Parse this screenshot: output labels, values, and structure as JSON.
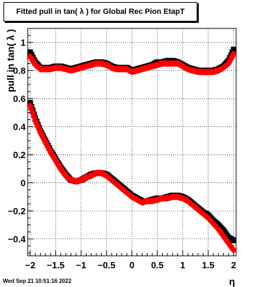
{
  "chart_data": {
    "type": "scatter",
    "title": "Fitted pull in tan( λ ) for Global Rec Pion EtapT",
    "xlabel": "η",
    "ylabel": "pull in tan( λ )",
    "xlim": [
      -2.05,
      2.05
    ],
    "ylim": [
      -0.52,
      1.1
    ],
    "x_ticks": [
      -2,
      -1.5,
      -1,
      -0.5,
      0,
      0.5,
      1,
      1.5,
      2
    ],
    "x_tick_labels": [
      "−2",
      "−1.5",
      "−1",
      "−0.5",
      "0",
      "0.5",
      "1",
      "1.5",
      "2"
    ],
    "y_ticks": [
      -0.4,
      -0.2,
      0,
      0.2,
      0.4,
      0.6,
      0.8,
      1
    ],
    "y_tick_labels": [
      "−0.4",
      "−0.2",
      "0",
      "0.2",
      "0.4",
      "0.6",
      "0.8",
      "1"
    ],
    "grid": true,
    "series": [
      {
        "color": "#000000",
        "marker": "square",
        "x": [
          -2.0,
          -1.9,
          -1.8,
          -1.7,
          -1.6,
          -1.5,
          -1.4,
          -1.3,
          -1.2,
          -1.1,
          -1.0,
          -0.9,
          -0.8,
          -0.7,
          -0.6,
          -0.5,
          -0.4,
          -0.3,
          -0.2,
          -0.1,
          0.0,
          0.1,
          0.2,
          0.3,
          0.4,
          0.5,
          0.6,
          0.7,
          0.8,
          0.9,
          1.0,
          1.1,
          1.2,
          1.3,
          1.4,
          1.5,
          1.6,
          1.7,
          1.8,
          1.9,
          2.0
        ],
        "upper": [
          0.93,
          0.86,
          0.82,
          0.82,
          0.82,
          0.83,
          0.83,
          0.82,
          0.81,
          0.82,
          0.83,
          0.84,
          0.85,
          0.86,
          0.86,
          0.85,
          0.83,
          0.82,
          0.82,
          0.82,
          0.8,
          0.81,
          0.82,
          0.83,
          0.84,
          0.86,
          0.86,
          0.87,
          0.87,
          0.86,
          0.84,
          0.82,
          0.81,
          0.8,
          0.8,
          0.8,
          0.8,
          0.81,
          0.83,
          0.87,
          0.95
        ],
        "lower": [
          0.57,
          0.46,
          0.37,
          0.3,
          0.23,
          0.17,
          0.11,
          0.06,
          0.02,
          0.01,
          0.02,
          0.04,
          0.06,
          0.07,
          0.07,
          0.06,
          0.03,
          0.0,
          -0.03,
          -0.06,
          -0.09,
          -0.11,
          -0.13,
          -0.13,
          -0.12,
          -0.11,
          -0.11,
          -0.1,
          -0.09,
          -0.09,
          -0.1,
          -0.12,
          -0.15,
          -0.18,
          -0.21,
          -0.23,
          -0.27,
          -0.3,
          -0.34,
          -0.39,
          -0.41
        ]
      },
      {
        "color": "#ff0000",
        "marker": "diamond",
        "x": [
          -2.0,
          -1.9,
          -1.8,
          -1.7,
          -1.6,
          -1.5,
          -1.4,
          -1.3,
          -1.2,
          -1.1,
          -1.0,
          -0.9,
          -0.8,
          -0.7,
          -0.6,
          -0.5,
          -0.4,
          -0.3,
          -0.2,
          -0.1,
          0.0,
          0.1,
          0.2,
          0.3,
          0.4,
          0.5,
          0.6,
          0.7,
          0.8,
          0.9,
          1.0,
          1.1,
          1.2,
          1.3,
          1.4,
          1.5,
          1.6,
          1.7,
          1.8,
          1.9,
          2.0
        ],
        "upper": [
          0.9,
          0.84,
          0.81,
          0.81,
          0.81,
          0.82,
          0.82,
          0.81,
          0.8,
          0.81,
          0.82,
          0.83,
          0.84,
          0.85,
          0.85,
          0.84,
          0.82,
          0.81,
          0.81,
          0.81,
          0.79,
          0.8,
          0.81,
          0.82,
          0.83,
          0.84,
          0.85,
          0.85,
          0.85,
          0.85,
          0.83,
          0.81,
          0.8,
          0.79,
          0.79,
          0.79,
          0.79,
          0.8,
          0.82,
          0.85,
          0.92
        ],
        "lower": [
          0.55,
          0.44,
          0.36,
          0.29,
          0.22,
          0.16,
          0.1,
          0.05,
          0.02,
          0.01,
          0.02,
          0.04,
          0.05,
          0.07,
          0.07,
          0.05,
          0.02,
          -0.01,
          -0.04,
          -0.07,
          -0.1,
          -0.12,
          -0.14,
          -0.13,
          -0.13,
          -0.12,
          -0.11,
          -0.11,
          -0.1,
          -0.1,
          -0.11,
          -0.13,
          -0.16,
          -0.19,
          -0.22,
          -0.25,
          -0.29,
          -0.33,
          -0.38,
          -0.43,
          -0.48
        ]
      }
    ]
  },
  "footer": {
    "timestamp": "Wed Sep 21 10:51:16 2022"
  }
}
